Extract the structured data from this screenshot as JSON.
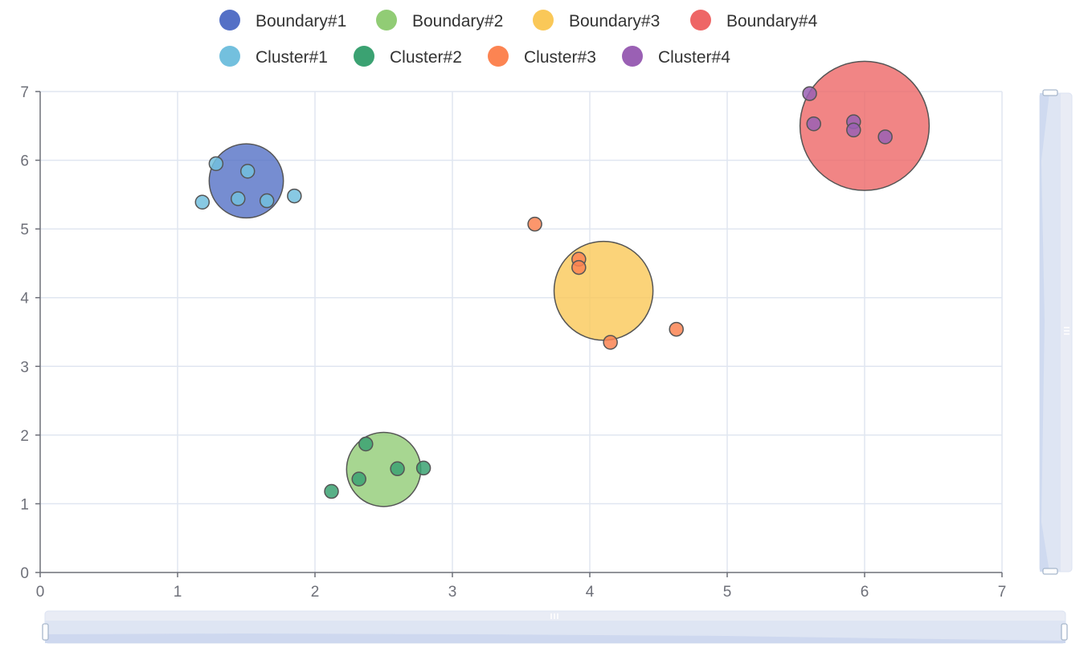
{
  "chart_data": {
    "type": "scatter",
    "xlim": [
      0,
      7
    ],
    "ylim": [
      0,
      7
    ],
    "x_ticks": [
      "0",
      "1",
      "2",
      "3",
      "4",
      "5",
      "6",
      "7"
    ],
    "y_ticks": [
      "0",
      "1",
      "2",
      "3",
      "4",
      "5",
      "6",
      "7"
    ],
    "grid": true,
    "legend_position": "top",
    "series": [
      {
        "name": "Boundary#1",
        "color": "#5470c6",
        "kind": "boundary",
        "radius": 0.27,
        "points": [
          [
            1.5,
            5.7
          ]
        ]
      },
      {
        "name": "Boundary#2",
        "color": "#91cc75",
        "kind": "boundary",
        "radius": 0.27,
        "points": [
          [
            2.5,
            1.5
          ]
        ]
      },
      {
        "name": "Boundary#3",
        "color": "#fac858",
        "kind": "boundary",
        "radius": 0.36,
        "points": [
          [
            4.1,
            4.1
          ]
        ]
      },
      {
        "name": "Boundary#4",
        "color": "#ee6666",
        "kind": "boundary",
        "radius": 0.47,
        "points": [
          [
            6.0,
            6.5
          ]
        ]
      },
      {
        "name": "Cluster#1",
        "color": "#73c0de",
        "kind": "cluster",
        "points": [
          [
            1.28,
            5.95
          ],
          [
            1.18,
            5.39
          ],
          [
            1.44,
            5.44
          ],
          [
            1.51,
            5.84
          ],
          [
            1.65,
            5.41
          ],
          [
            1.85,
            5.48
          ]
        ]
      },
      {
        "name": "Cluster#2",
        "color": "#3ba272",
        "kind": "cluster",
        "points": [
          [
            2.12,
            1.18
          ],
          [
            2.32,
            1.36
          ],
          [
            2.37,
            1.87
          ],
          [
            2.6,
            1.51
          ],
          [
            2.79,
            1.52
          ]
        ]
      },
      {
        "name": "Cluster#3",
        "color": "#fc8452",
        "kind": "cluster",
        "points": [
          [
            3.6,
            5.07
          ],
          [
            3.92,
            4.56
          ],
          [
            3.92,
            4.44
          ],
          [
            4.15,
            3.35
          ],
          [
            4.63,
            3.54
          ]
        ]
      },
      {
        "name": "Cluster#4",
        "color": "#9a60b4",
        "kind": "cluster",
        "points": [
          [
            5.6,
            6.97
          ],
          [
            5.63,
            6.53
          ],
          [
            5.92,
            6.56
          ],
          [
            5.92,
            6.44
          ],
          [
            6.15,
            6.34
          ]
        ]
      }
    ]
  },
  "datazoom_x": {
    "start_fraction": 0.0,
    "end_fraction": 1.0
  },
  "datazoom_y": {
    "start_fraction": 0.0,
    "end_fraction": 1.0
  }
}
